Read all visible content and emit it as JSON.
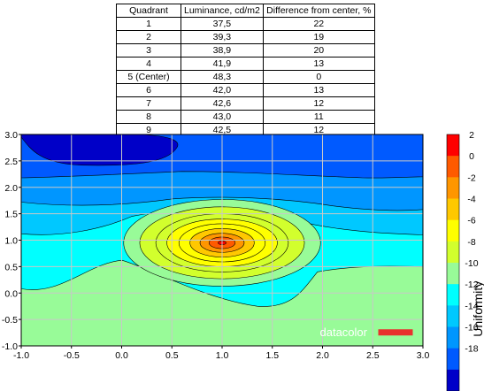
{
  "table": {
    "headers": [
      "Quadrant",
      "Luminance, cd/m2",
      "Difference from center, %"
    ],
    "rows": [
      [
        "1",
        "37,5",
        "22"
      ],
      [
        "2",
        "39,3",
        "19"
      ],
      [
        "3",
        "38,9",
        "20"
      ],
      [
        "4",
        "41,9",
        "13"
      ],
      [
        "5 (Center)",
        "48,3",
        "0"
      ],
      [
        "6",
        "42,0",
        "13"
      ],
      [
        "7",
        "42,6",
        "12"
      ],
      [
        "8",
        "43,0",
        "11"
      ],
      [
        "9",
        "42,5",
        "12"
      ]
    ]
  },
  "chart_data": {
    "type": "heatmap",
    "subtype": "filled-contour",
    "xlim": [
      -1.0,
      3.0
    ],
    "ylim": [
      -1.0,
      3.0
    ],
    "x_ticks": [
      "-1.0",
      "-0.5",
      "0.0",
      "0.5",
      "1.0",
      "1.5",
      "2.0",
      "2.5",
      "3.0"
    ],
    "y_ticks": [
      "3.0",
      "2.5",
      "2.0",
      "1.5",
      "1.0",
      "0.5",
      "0.0",
      "-0.5",
      "-1.0"
    ],
    "grid": true,
    "colorbar": {
      "label": "Uniformity",
      "ticks": [
        "2",
        "0",
        "-2",
        "-4",
        "-6",
        "-8",
        "-10",
        "-12",
        "-14",
        "-16",
        "-18"
      ],
      "levels": [
        2,
        0,
        -2,
        -4,
        -6,
        -8,
        -10,
        -12,
        -14,
        -16,
        -18
      ],
      "colors": [
        "#ff0000",
        "#ff5a00",
        "#ff9600",
        "#ffc800",
        "#ffff00",
        "#d2ff2d",
        "#98fb98",
        "#00ffff",
        "#00c8ff",
        "#0096ff",
        "#005aff",
        "#0000c8"
      ]
    },
    "peak": {
      "x": 1.0,
      "y": 0.95,
      "value": 2
    },
    "contour_bands_z": {
      "description": "uniformity values (0 = center luminance) in filled contour bands",
      "center_max": 2
    },
    "watermark": "datacolor"
  },
  "colors": {
    "grid": "#c8c8c8",
    "watermark_bar": "#e8322d"
  }
}
